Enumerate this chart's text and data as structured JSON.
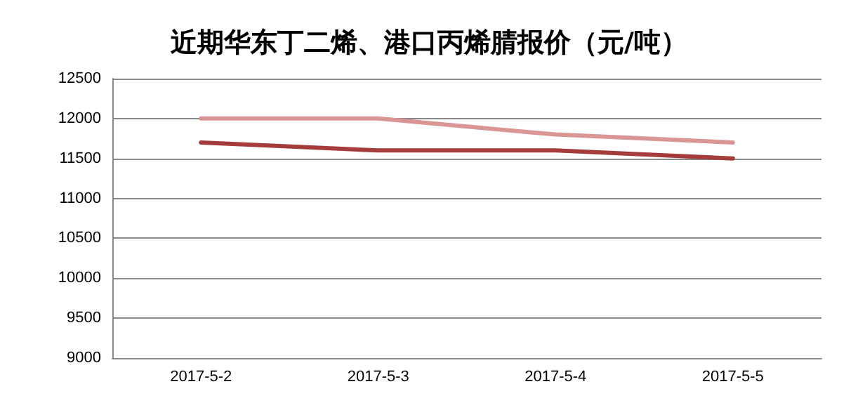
{
  "chart_data": {
    "type": "line",
    "title": "近期华东丁二烯、港口丙烯腈报价（元/吨）",
    "categories": [
      "2017-5-2",
      "2017-5-3",
      "2017-5-4",
      "2017-5-5"
    ],
    "series": [
      {
        "color": "#d99694",
        "values": [
          12000,
          12000,
          11800,
          11700
        ]
      },
      {
        "color": "#a53c3c",
        "values": [
          11700,
          11600,
          11600,
          11500
        ]
      }
    ],
    "ylim": [
      9000,
      12500
    ],
    "yticks": [
      9000,
      9500,
      10000,
      10500,
      11000,
      11500,
      12000,
      12500
    ],
    "grid": "y",
    "marker": "none",
    "line_style": "solid"
  }
}
